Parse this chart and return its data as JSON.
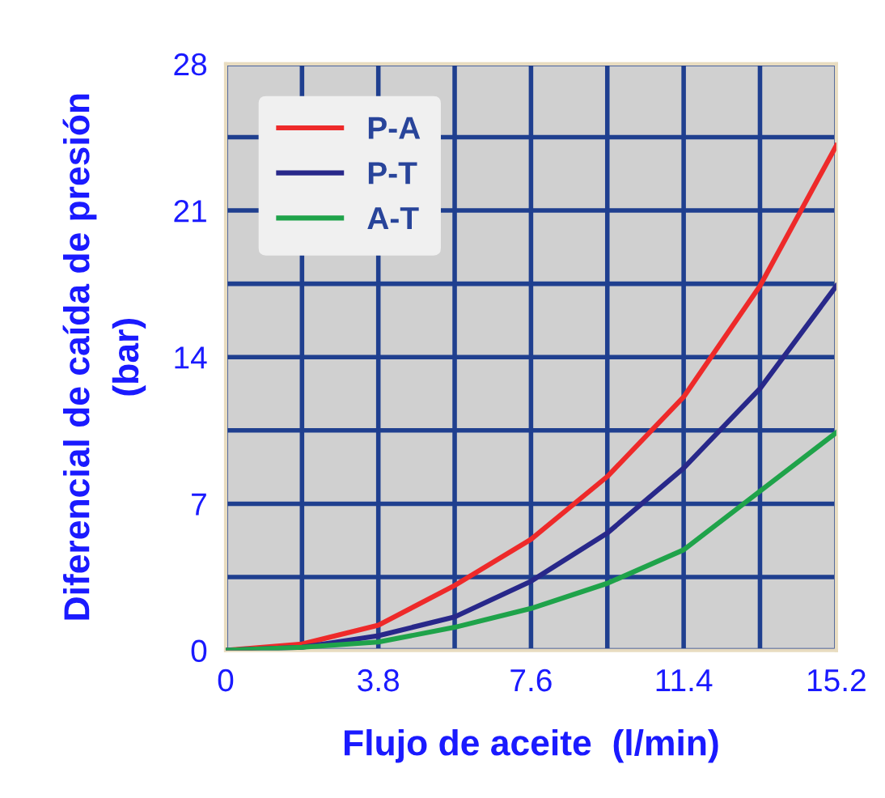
{
  "chart_data": {
    "type": "line",
    "xlabel": "Flujo de aceite  (l/min)",
    "ylabel": "Diferencial de caída de presión\n(bar)",
    "x": [
      0,
      1.9,
      3.8,
      5.7,
      7.6,
      9.5,
      11.4,
      13.3,
      15.2
    ],
    "series": [
      {
        "name": "P-A",
        "color": "#ee2a2a",
        "values": [
          0,
          0.3,
          1.2,
          3.1,
          5.3,
          8.3,
          12.1,
          17.4,
          24.1
        ]
      },
      {
        "name": "P-T",
        "color": "#28288a",
        "values": [
          0,
          0.15,
          0.7,
          1.6,
          3.3,
          5.6,
          8.7,
          12.5,
          17.4
        ]
      },
      {
        "name": "A-T",
        "color": "#1fa34a",
        "values": [
          0,
          0.15,
          0.4,
          1.1,
          2.0,
          3.2,
          4.8,
          7.6,
          10.4
        ]
      }
    ],
    "xlim": [
      0,
      15.2
    ],
    "ylim": [
      0,
      28
    ],
    "xticks": [
      0,
      {
        "value": 1.9,
        "label": null
      },
      3.8,
      {
        "value": 5.7,
        "label": null
      },
      7.6,
      {
        "value": 9.5,
        "label": null
      },
      11.4,
      {
        "value": 13.3,
        "label": null
      },
      15.2
    ],
    "yticks": [
      0,
      {
        "value": 3.5,
        "label": null
      },
      7,
      {
        "value": 10.5,
        "label": null
      },
      14,
      {
        "value": 17.5,
        "label": null
      },
      21,
      {
        "value": 24.5,
        "label": null
      },
      28
    ],
    "grid": true,
    "legend": "top left",
    "marker": "none",
    "line_style": "solid"
  }
}
